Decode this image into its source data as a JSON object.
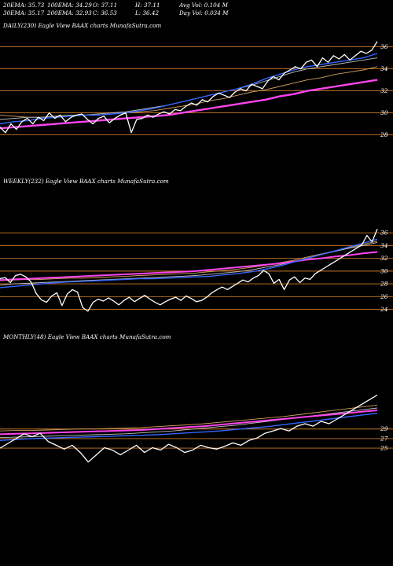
{
  "header": {
    "ema20": "20EMA: 35.73",
    "ema100": "100EMA: 34.29",
    "open": "O: 37.11",
    "high": "H: 37.11",
    "avg_vol": "Avg Vol: 0.104  M",
    "ema30": "30EMA: 35.17",
    "ema200": "200EMA: 32.93",
    "close": "C: 36.53",
    "low": "L: 36.42",
    "day_vol": "Day Vol: 0.034  M"
  },
  "colors": {
    "background": "#000000",
    "price": "#ffffff",
    "ema_fast": "#3366ff",
    "ema_mid": "#c0c0c0",
    "ema_slow": "#d2a060",
    "ema_long": "#ff44ee",
    "gridline": "#cc7a2a"
  },
  "chart_data": [
    {
      "type": "line",
      "title": "DAILY(230) Eagle   View  BAAX  charts MunafaSutra.com",
      "yticks": [
        "36",
        "34",
        "32",
        "30",
        "28"
      ],
      "ylim": [
        27.4,
        37.4
      ],
      "series": [
        {
          "role": "price",
          "values": [
            28.7,
            28.2,
            29.0,
            28.5,
            29.2,
            29.5,
            29.0,
            29.6,
            29.3,
            30.0,
            29.5,
            29.8,
            29.2,
            29.6,
            29.8,
            29.9,
            29.4,
            29.0,
            29.5,
            29.7,
            29.1,
            29.5,
            29.8,
            30.0,
            28.2,
            29.4,
            29.5,
            29.8,
            29.6,
            29.9,
            30.1,
            29.9,
            30.3,
            30.2,
            30.6,
            30.9,
            30.7,
            31.2,
            31.0,
            31.5,
            31.8,
            31.6,
            31.4,
            31.9,
            32.2,
            32.0,
            32.6,
            32.4,
            32.2,
            32.9,
            33.3,
            33.0,
            33.6,
            33.9,
            34.2,
            34.0,
            34.6,
            34.8,
            34.2,
            35.0,
            34.6,
            35.2,
            34.9,
            35.3,
            34.8,
            35.2,
            35.6,
            35.4,
            35.7,
            36.5
          ]
        },
        {
          "role": "ema_fast",
          "values": [
            29.0,
            29.2,
            29.3,
            29.5,
            29.6,
            29.7,
            29.8,
            29.8,
            29.9,
            30.0,
            30.2,
            30.4,
            30.7,
            31.0,
            31.3,
            31.6,
            31.9,
            32.2,
            32.6,
            33.1,
            33.5,
            33.9,
            34.2,
            34.4,
            34.6,
            34.8,
            35.0,
            35.4
          ]
        },
        {
          "role": "ema_mid",
          "values": [
            29.4,
            29.5,
            29.6,
            29.6,
            29.7,
            29.8,
            29.8,
            29.9,
            30.0,
            30.1,
            30.3,
            30.5,
            30.7,
            31.0,
            31.3,
            31.6,
            31.9,
            32.2,
            32.5,
            32.9,
            33.3,
            33.7,
            34.0,
            34.2,
            34.4,
            34.6,
            34.8,
            35.0
          ]
        },
        {
          "role": "ema_slow",
          "values": [
            29.8,
            29.7,
            29.6,
            29.6,
            29.7,
            29.7,
            29.8,
            29.8,
            29.9,
            30.0,
            30.1,
            30.2,
            30.4,
            30.6,
            30.8,
            31.1,
            31.3,
            31.6,
            31.9,
            32.1,
            32.4,
            32.7,
            33.0,
            33.2,
            33.5,
            33.7,
            33.9,
            34.2
          ]
        },
        {
          "role": "ema_long",
          "values": [
            28.6,
            28.7,
            28.8,
            28.9,
            29.0,
            29.1,
            29.2,
            29.3,
            29.4,
            29.5,
            29.6,
            29.7,
            29.8,
            30.0,
            30.2,
            30.4,
            30.6,
            30.8,
            31.0,
            31.2,
            31.5,
            31.7,
            32.0,
            32.2,
            32.4,
            32.6,
            32.8,
            33.0
          ]
        }
      ]
    },
    {
      "type": "line",
      "title": "WEEKLY(232) Eagle   View  BAAX  charts MunafaSutra.com",
      "yticks": [
        "36",
        "34",
        "32",
        "30",
        "28",
        "26",
        "24"
      ],
      "ylim": [
        23.2,
        38.0
      ],
      "series": [
        {
          "role": "price",
          "values": [
            28.8,
            29.0,
            28.2,
            29.3,
            29.5,
            29.1,
            28.3,
            26.5,
            25.5,
            25.1,
            26.1,
            26.6,
            24.6,
            26.4,
            27.1,
            26.7,
            24.3,
            23.7,
            25.1,
            25.6,
            25.3,
            25.8,
            25.3,
            24.7,
            25.4,
            25.9,
            25.2,
            25.7,
            26.2,
            25.6,
            25.1,
            24.7,
            25.2,
            25.6,
            25.9,
            25.4,
            26.1,
            25.7,
            25.2,
            25.4,
            25.9,
            26.6,
            27.1,
            27.5,
            27.1,
            27.6,
            28.1,
            28.6,
            28.3,
            28.9,
            29.3,
            30.1,
            29.6,
            28.1,
            28.7,
            27.1,
            28.6,
            29.1,
            28.2,
            28.9,
            28.7,
            29.6,
            30.1,
            30.6,
            31.1,
            31.6,
            32.1,
            32.6,
            33.1,
            33.6,
            34.1,
            35.6,
            34.6,
            36.6
          ]
        },
        {
          "role": "ema_fast",
          "values": [
            27.4,
            27.6,
            27.8,
            28.0,
            28.2,
            28.3,
            28.4,
            28.5,
            28.6,
            28.7,
            28.8,
            28.8,
            28.9,
            29.0,
            29.1,
            29.2,
            29.4,
            29.6,
            29.9,
            30.3,
            30.8,
            31.4,
            32.0,
            32.6,
            33.2,
            33.8,
            34.4,
            35.0
          ]
        },
        {
          "role": "ema_mid",
          "values": [
            27.8,
            28.0,
            28.1,
            28.2,
            28.3,
            28.4,
            28.5,
            28.6,
            28.7,
            28.8,
            28.9,
            29.0,
            29.1,
            29.2,
            29.3,
            29.5,
            29.7,
            29.9,
            30.2,
            30.6,
            31.0,
            31.5,
            32.0,
            32.6,
            33.1,
            33.6,
            34.0,
            34.5
          ]
        },
        {
          "role": "ema_slow",
          "values": [
            28.5,
            28.6,
            28.7,
            28.7,
            28.8,
            28.9,
            28.9,
            29.0,
            29.1,
            29.2,
            29.3,
            29.4,
            29.5,
            29.6,
            29.7,
            29.9,
            30.1,
            30.3,
            30.6,
            30.9,
            31.3,
            31.7,
            32.2,
            32.7,
            33.2,
            33.7,
            34.2,
            34.7
          ]
        },
        {
          "role": "ema_long",
          "values": [
            28.6,
            28.7,
            28.8,
            28.9,
            29.0,
            29.1,
            29.2,
            29.3,
            29.4,
            29.5,
            29.6,
            29.7,
            29.8,
            29.9,
            30.0,
            30.2,
            30.4,
            30.6,
            30.8,
            31.0,
            31.2,
            31.5,
            31.8,
            32.0,
            32.3,
            32.5,
            32.8,
            33.0
          ]
        }
      ]
    },
    {
      "type": "line",
      "title": "MONTHLY(48) Eagle   View  BAAX  charts MunafaSutra.com",
      "yticks": [
        "29",
        "27",
        "25"
      ],
      "ylim": [
        16.8,
        39.8
      ],
      "series": [
        {
          "role": "price",
          "values": [
            25.0,
            26.0,
            27.0,
            28.0,
            27.4,
            28.1,
            26.4,
            25.6,
            24.8,
            25.6,
            24.1,
            22.1,
            23.6,
            25.1,
            24.6,
            23.6,
            24.6,
            25.6,
            24.1,
            25.1,
            24.6,
            25.8,
            25.1,
            24.1,
            24.6,
            25.6,
            25.1,
            24.8,
            25.4,
            26.1,
            25.6,
            26.6,
            27.1,
            28.1,
            28.6,
            29.1,
            28.6,
            29.6,
            30.1,
            29.6,
            30.6,
            30.1,
            31.1,
            32.1,
            33.1,
            34.1,
            35.1,
            36.1
          ]
        },
        {
          "role": "ema_fast",
          "values": [
            26.6,
            26.8,
            27.0,
            27.1,
            27.2,
            27.3,
            27.4,
            27.5,
            27.6,
            27.7,
            27.8,
            28.0,
            28.2,
            28.4,
            28.6,
            28.9,
            29.2,
            29.5,
            29.9,
            30.3,
            30.7,
            31.1,
            31.5,
            31.9,
            32.3
          ]
        },
        {
          "role": "ema_mid",
          "values": [
            27.2,
            27.3,
            27.4,
            27.5,
            27.6,
            27.7,
            27.8,
            27.9,
            28.0,
            28.2,
            28.4,
            28.6,
            28.9,
            29.2,
            29.5,
            29.8,
            30.2,
            30.6,
            31.0,
            31.4,
            31.8,
            32.2,
            32.6,
            33.0,
            33.4
          ]
        },
        {
          "role": "ema_slow",
          "values": [
            28.6,
            28.7,
            28.7,
            28.8,
            28.9,
            29.0,
            29.0,
            29.1,
            29.2,
            29.3,
            29.5,
            29.7,
            29.9,
            30.1,
            30.4,
            30.7,
            31.0,
            31.3,
            31.6,
            32.0,
            32.4,
            32.8,
            33.2,
            33.6,
            34.0
          ]
        },
        {
          "role": "ema_long",
          "values": [
            27.9,
            28.0,
            28.1,
            28.2,
            28.3,
            28.4,
            28.5,
            28.6,
            28.7,
            28.8,
            29.0,
            29.2,
            29.4,
            29.6,
            29.9,
            30.2,
            30.5,
            30.8,
            31.1,
            31.4,
            31.7,
            32.0,
            32.3,
            32.6,
            32.9
          ]
        }
      ]
    }
  ]
}
